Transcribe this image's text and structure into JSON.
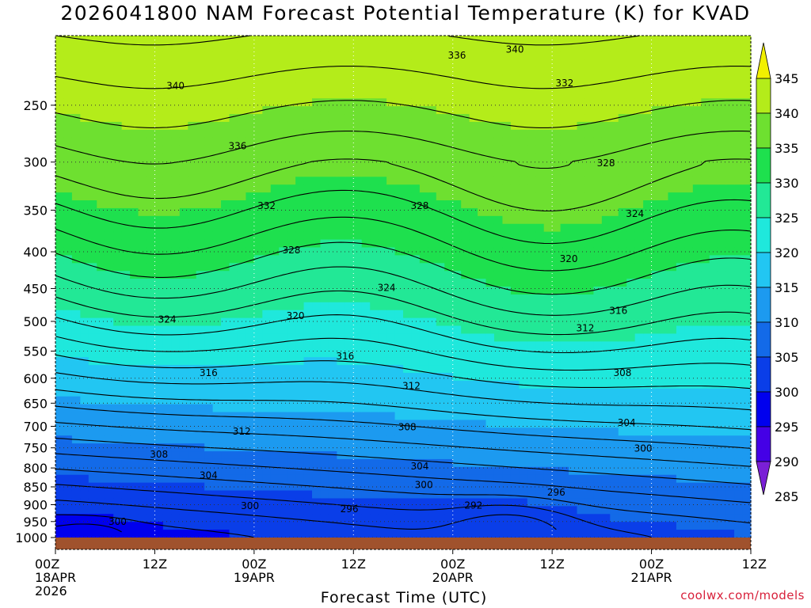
{
  "chart_data": {
    "type": "heatmap",
    "title": "2026041800 NAM Forecast Potential Temperature (K) for KVAD",
    "xlabel": "Forecast Time (UTC)",
    "ylabel": "",
    "x_ticks": [
      {
        "hour": 0,
        "lines": [
          "00Z",
          "18APR",
          "2026"
        ]
      },
      {
        "hour": 12,
        "lines": [
          "12Z"
        ]
      },
      {
        "hour": 24,
        "lines": [
          "00Z",
          "19APR"
        ]
      },
      {
        "hour": 36,
        "lines": [
          "12Z"
        ]
      },
      {
        "hour": 48,
        "lines": [
          "00Z",
          "20APR"
        ]
      },
      {
        "hour": 60,
        "lines": [
          "12Z"
        ]
      },
      {
        "hour": 72,
        "lines": [
          "00Z",
          "21APR"
        ]
      },
      {
        "hour": 84,
        "lines": [
          "12Z"
        ]
      }
    ],
    "xlim_hours": [
      0,
      84
    ],
    "y_axis": "pressure (hPa), log scale, inverted",
    "y_ticks": [
      250,
      300,
      350,
      400,
      450,
      500,
      550,
      600,
      650,
      700,
      750,
      800,
      850,
      900,
      950,
      1000
    ],
    "ylim": [
      1000,
      200
    ],
    "colorbar": {
      "levels": [
        285,
        290,
        295,
        300,
        305,
        310,
        315,
        320,
        325,
        330,
        335,
        340,
        345
      ],
      "labels": [
        "345",
        "340",
        "335",
        "330",
        "325",
        "320",
        "315",
        "310",
        "305",
        "300",
        "295",
        "290",
        "285"
      ],
      "colors": [
        "#7a1fd6",
        "#4400e6",
        "#0000ee",
        "#0a3ee8",
        "#136ae8",
        "#1c9af0",
        "#22c6f2",
        "#1fe8dc",
        "#22e896",
        "#1ee04e",
        "#6ee030",
        "#b4ec1a",
        "#f2f000"
      ]
    },
    "contour_interval": 2,
    "contour_labels": [
      {
        "value": 340,
        "hour": 14.5,
        "p": 235
      },
      {
        "value": 336,
        "hour": 22,
        "p": 285
      },
      {
        "value": 332,
        "hour": 25.5,
        "p": 345
      },
      {
        "value": 328,
        "hour": 28.5,
        "p": 398
      },
      {
        "value": 324,
        "hour": 13.5,
        "p": 497
      },
      {
        "value": 316,
        "hour": 18.5,
        "p": 590
      },
      {
        "value": 312,
        "hour": 22.5,
        "p": 712
      },
      {
        "value": 308,
        "hour": 12.5,
        "p": 766
      },
      {
        "value": 304,
        "hour": 18.5,
        "p": 819
      },
      {
        "value": 300,
        "hour": 7.5,
        "p": 950
      },
      {
        "value": 300,
        "hour": 23.5,
        "p": 903
      },
      {
        "value": 296,
        "hour": 35.5,
        "p": 913
      },
      {
        "value": 292,
        "hour": 50.5,
        "p": 902
      },
      {
        "value": 296,
        "hour": 60.5,
        "p": 865
      },
      {
        "value": 300,
        "hour": 71,
        "p": 752
      },
      {
        "value": 304,
        "hour": 69,
        "p": 692
      },
      {
        "value": 308,
        "hour": 68.5,
        "p": 590
      },
      {
        "value": 312,
        "hour": 64,
        "p": 511
      },
      {
        "value": 316,
        "hour": 68,
        "p": 483
      },
      {
        "value": 320,
        "hour": 62,
        "p": 409
      },
      {
        "value": 324,
        "hour": 70,
        "p": 354
      },
      {
        "value": 328,
        "hour": 66.5,
        "p": 301
      },
      {
        "value": 332,
        "hour": 61.5,
        "p": 233
      },
      {
        "value": 336,
        "hour": 48.5,
        "p": 213
      },
      {
        "value": 340,
        "hour": 55.5,
        "p": 209
      },
      {
        "value": 312,
        "hour": 43,
        "p": 615
      },
      {
        "value": 316,
        "hour": 35,
        "p": 559
      },
      {
        "value": 320,
        "hour": 29,
        "p": 491
      },
      {
        "value": 324,
        "hour": 40,
        "p": 449
      },
      {
        "value": 328,
        "hour": 44,
        "p": 345
      },
      {
        "value": 304,
        "hour": 44,
        "p": 796
      },
      {
        "value": 300,
        "hour": 44.5,
        "p": 845
      },
      {
        "value": 308,
        "hour": 42.5,
        "p": 702
      }
    ],
    "credit": "coolwx.com/models",
    "grid": "dotted at tick marks"
  }
}
